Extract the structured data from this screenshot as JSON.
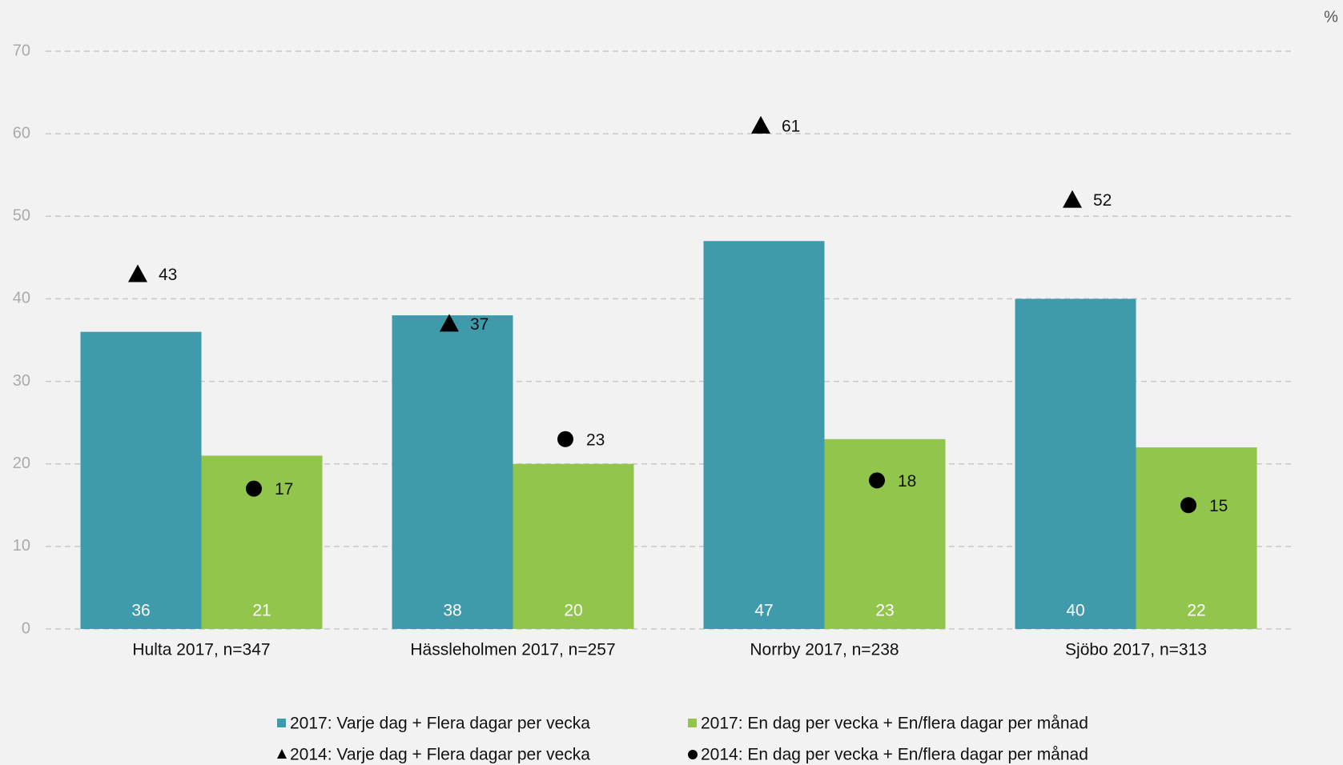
{
  "chart_data": {
    "type": "bar",
    "unit": "%",
    "categories": [
      "Hulta 2017, n=347",
      "Hässleholmen 2017, n=257",
      "Norrby 2017, n=238",
      "Sjöbo 2017, n=313"
    ],
    "series": [
      {
        "name": "2017: Varje dag + Flera dagar per vecka",
        "color": "#3f9aab",
        "values": [
          36,
          38,
          47,
          40
        ]
      },
      {
        "name": "2017: En dag per vecka + En/flera dagar per månad",
        "color": "#92c54b",
        "values": [
          21,
          20,
          23,
          22
        ]
      },
      {
        "name": "2014: Varje dag + Flera dagar per vecka",
        "color": "#000000",
        "marker": "triangle",
        "values": [
          43,
          37,
          61,
          52
        ]
      },
      {
        "name": "2014: En dag per vecka + En/flera dagar per månad",
        "color": "#000000",
        "marker": "circle",
        "values": [
          17,
          23,
          18,
          15
        ]
      }
    ],
    "ylim": [
      0,
      70
    ],
    "yticks": [
      0,
      10,
      20,
      30,
      40,
      50,
      60,
      70
    ],
    "grid": true,
    "legend": "bottom"
  }
}
